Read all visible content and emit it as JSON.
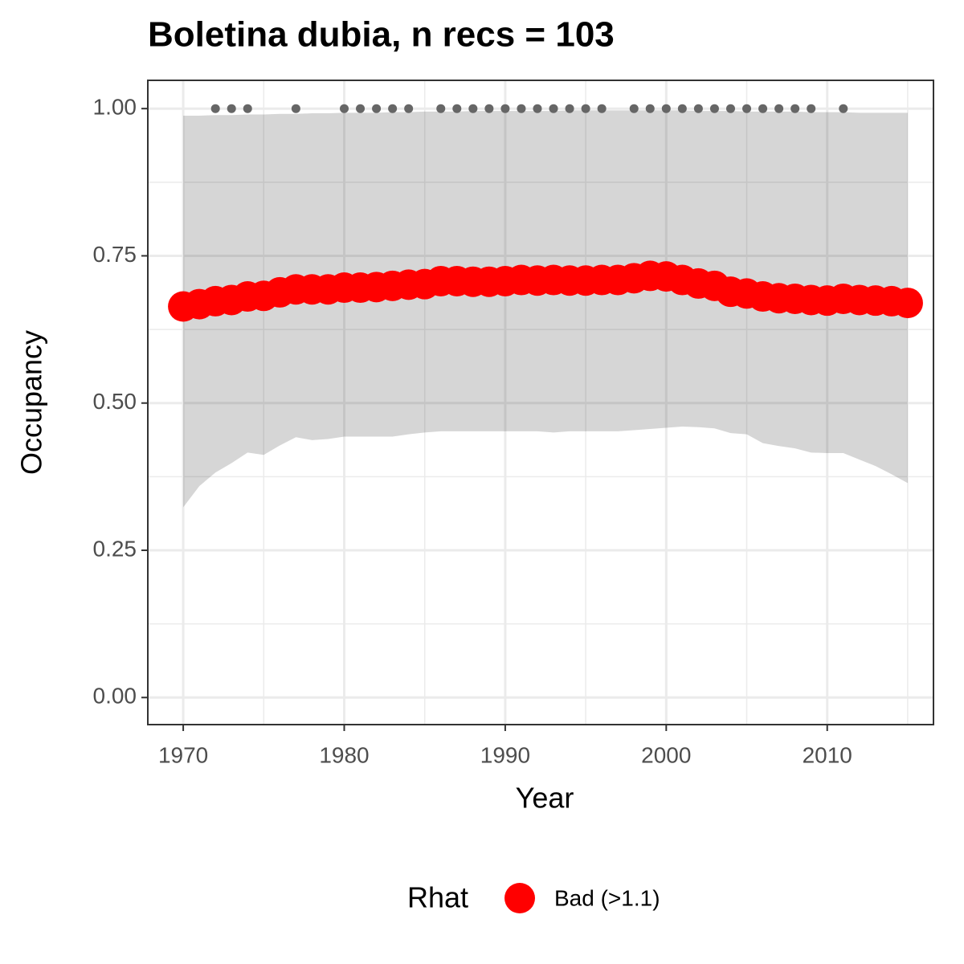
{
  "chart_data": {
    "type": "line",
    "title": "Boletina dubia, n recs = 103",
    "x_label": "Year",
    "y_label": "Occupancy",
    "legend_title": "Rhat",
    "legend": "bottom",
    "grid": true,
    "x": [
      1970,
      1971,
      1972,
      1973,
      1974,
      1975,
      1976,
      1977,
      1978,
      1979,
      1980,
      1981,
      1982,
      1983,
      1984,
      1985,
      1986,
      1987,
      1988,
      1989,
      1990,
      1991,
      1992,
      1993,
      1994,
      1995,
      1996,
      1997,
      1998,
      1999,
      2000,
      2001,
      2002,
      2003,
      2004,
      2005,
      2006,
      2007,
      2008,
      2009,
      2010,
      2011,
      2012,
      2013,
      2014,
      2015
    ],
    "series": [
      {
        "name": "Bad (>1.1)",
        "color": "#ff0000",
        "values": [
          0.664,
          0.668,
          0.673,
          0.675,
          0.681,
          0.682,
          0.688,
          0.693,
          0.693,
          0.693,
          0.696,
          0.696,
          0.697,
          0.699,
          0.701,
          0.702,
          0.707,
          0.707,
          0.706,
          0.706,
          0.707,
          0.709,
          0.708,
          0.709,
          0.708,
          0.708,
          0.709,
          0.709,
          0.712,
          0.716,
          0.715,
          0.709,
          0.703,
          0.699,
          0.689,
          0.686,
          0.681,
          0.678,
          0.677,
          0.675,
          0.674,
          0.677,
          0.675,
          0.674,
          0.673,
          0.67
        ]
      }
    ],
    "band": {
      "color": "#000000",
      "lower": [
        0.323,
        0.359,
        0.382,
        0.398,
        0.416,
        0.412,
        0.428,
        0.442,
        0.437,
        0.439,
        0.443,
        0.443,
        0.443,
        0.443,
        0.447,
        0.45,
        0.452,
        0.452,
        0.452,
        0.452,
        0.452,
        0.452,
        0.452,
        0.45,
        0.452,
        0.452,
        0.452,
        0.452,
        0.454,
        0.456,
        0.458,
        0.46,
        0.459,
        0.457,
        0.449,
        0.447,
        0.432,
        0.427,
        0.423,
        0.416,
        0.415,
        0.415,
        0.404,
        0.393,
        0.379,
        0.364
      ],
      "upper": [
        0.988,
        0.988,
        0.989,
        0.989,
        0.99,
        0.99,
        0.991,
        0.991,
        0.992,
        0.992,
        0.993,
        0.993,
        0.993,
        0.994,
        0.994,
        0.995,
        0.995,
        0.995,
        0.996,
        0.996,
        0.996,
        0.996,
        0.996,
        0.996,
        0.997,
        0.997,
        0.997,
        0.997,
        0.997,
        0.997,
        0.997,
        0.997,
        0.996,
        0.996,
        0.996,
        0.995,
        0.995,
        0.995,
        0.995,
        0.994,
        0.994,
        0.994,
        0.993,
        0.993,
        0.993,
        0.993
      ]
    },
    "records": {
      "color": "#666666",
      "x": [
        1972,
        1973,
        1974,
        1977,
        1980,
        1981,
        1982,
        1983,
        1984,
        1986,
        1987,
        1988,
        1989,
        1990,
        1991,
        1992,
        1993,
        1994,
        1995,
        1996,
        1998,
        1999,
        2000,
        2001,
        2002,
        2003,
        2004,
        2005,
        2006,
        2007,
        2008,
        2009,
        2011
      ],
      "values": [
        1,
        1,
        1,
        1,
        1,
        1,
        1,
        1,
        1,
        1,
        1,
        1,
        1,
        1,
        1,
        1,
        1,
        1,
        1,
        1,
        1,
        1,
        1,
        1,
        1,
        1,
        1,
        1,
        1,
        1,
        1,
        1,
        1
      ]
    },
    "xlim": [
      1967.8,
      2016.6
    ],
    "ylim": [
      -0.046,
      1.048
    ],
    "xticks": [
      1970,
      1980,
      1990,
      2000,
      2010
    ],
    "xminor": [
      1975,
      1985,
      1995,
      2005,
      2015
    ],
    "yticks": [
      {
        "value": 0,
        "label": "0.00"
      },
      {
        "value": 0.25,
        "label": "0.25"
      },
      {
        "value": 0.5,
        "label": "0.50"
      },
      {
        "value": 0.75,
        "label": "0.75"
      },
      {
        "value": 1,
        "label": "1.00"
      }
    ],
    "yminor": [
      0.125,
      0.375,
      0.625,
      0.875
    ]
  }
}
